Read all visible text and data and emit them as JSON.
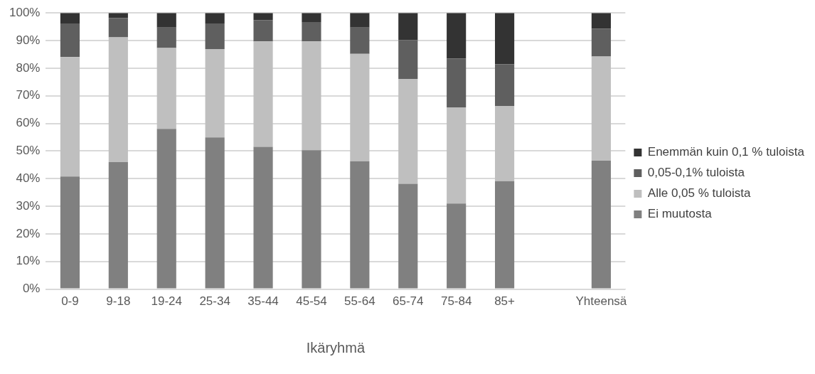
{
  "chart_data": {
    "type": "bar",
    "stacked": true,
    "xlabel": "Ikäryhmä",
    "categories": [
      "0-9",
      "9-18",
      "19-24",
      "25-34",
      "35-44",
      "45-54",
      "55-64",
      "65-74",
      "75-84",
      "85+",
      null,
      "Yhteensä"
    ],
    "series": [
      {
        "name": "Ei muutosta",
        "color": "#808080",
        "values": [
          40.8,
          46.0,
          58.0,
          54.9,
          51.5,
          50.3,
          46.3,
          38.1,
          31.0,
          39.1,
          null,
          46.5
        ]
      },
      {
        "name": "Alle 0,05 % tuloista",
        "color": "#bfbfbf",
        "values": [
          43.2,
          45.2,
          29.3,
          32.0,
          38.2,
          39.4,
          38.9,
          38.0,
          34.8,
          27.2,
          null,
          37.7
        ]
      },
      {
        "name": "0,05-0,1% tuloista",
        "color": "#5f5f5f",
        "values": [
          12.2,
          6.9,
          7.4,
          9.3,
          7.7,
          7.0,
          9.5,
          14.1,
          17.7,
          15.1,
          null,
          10.1
        ]
      },
      {
        "name": "Enemmän kuin 0,1 % tuloista",
        "color": "#333333",
        "values": [
          3.8,
          1.9,
          5.3,
          3.8,
          2.6,
          3.3,
          5.3,
          9.8,
          16.5,
          18.6,
          null,
          5.7
        ]
      }
    ],
    "ylim": [
      0,
      100
    ],
    "yticks": [
      {
        "value": 0,
        "label": "0%"
      },
      {
        "value": 10,
        "label": "10%"
      },
      {
        "value": 20,
        "label": "20%"
      },
      {
        "value": 30,
        "label": "30%"
      },
      {
        "value": 40,
        "label": "40%"
      },
      {
        "value": 50,
        "label": "50%"
      },
      {
        "value": 60,
        "label": "60%"
      },
      {
        "value": 70,
        "label": "70%"
      },
      {
        "value": 80,
        "label": "80%"
      },
      {
        "value": 90,
        "label": "90%"
      },
      {
        "value": 100,
        "label": "100%"
      }
    ],
    "grid": "y",
    "legend": "right"
  }
}
